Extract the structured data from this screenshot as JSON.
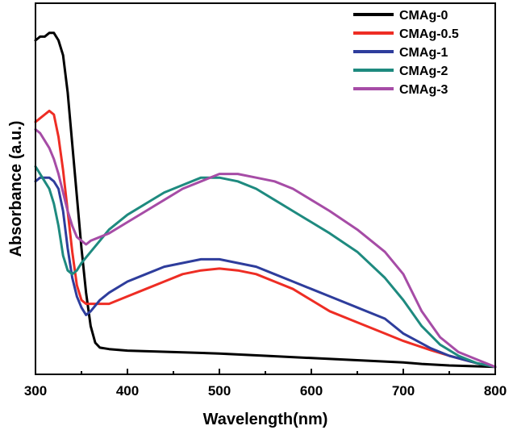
{
  "chart_data": {
    "type": "line",
    "title": "",
    "xlabel": "Wavelength(nm)",
    "ylabel": "Absorbance (a.u.)",
    "xlim": [
      300,
      800
    ],
    "ylim": [
      0,
      1
    ],
    "xticks": [
      "300",
      "400",
      "500",
      "600",
      "700",
      "800"
    ],
    "yticks_shown": false,
    "grid": false,
    "legend_position": "top-right",
    "series": [
      {
        "name": "CMAg-0",
        "color": "#000000",
        "points": [
          [
            300,
            0.9
          ],
          [
            305,
            0.91
          ],
          [
            310,
            0.91
          ],
          [
            315,
            0.92
          ],
          [
            320,
            0.92
          ],
          [
            325,
            0.9
          ],
          [
            330,
            0.86
          ],
          [
            335,
            0.76
          ],
          [
            340,
            0.62
          ],
          [
            345,
            0.48
          ],
          [
            350,
            0.34
          ],
          [
            355,
            0.22
          ],
          [
            360,
            0.13
          ],
          [
            365,
            0.085
          ],
          [
            370,
            0.072
          ],
          [
            380,
            0.068
          ],
          [
            400,
            0.064
          ],
          [
            450,
            0.06
          ],
          [
            500,
            0.056
          ],
          [
            550,
            0.05
          ],
          [
            600,
            0.044
          ],
          [
            650,
            0.038
          ],
          [
            700,
            0.032
          ],
          [
            720,
            0.028
          ],
          [
            750,
            0.024
          ],
          [
            800,
            0.02
          ]
        ]
      },
      {
        "name": "CMAg-0.5",
        "color": "#ee2d24",
        "points": [
          [
            300,
            0.68
          ],
          [
            305,
            0.69
          ],
          [
            310,
            0.7
          ],
          [
            315,
            0.71
          ],
          [
            320,
            0.7
          ],
          [
            325,
            0.64
          ],
          [
            330,
            0.55
          ],
          [
            335,
            0.44
          ],
          [
            340,
            0.33
          ],
          [
            345,
            0.24
          ],
          [
            350,
            0.2
          ],
          [
            355,
            0.19
          ],
          [
            360,
            0.19
          ],
          [
            370,
            0.19
          ],
          [
            380,
            0.19
          ],
          [
            400,
            0.21
          ],
          [
            420,
            0.23
          ],
          [
            440,
            0.25
          ],
          [
            460,
            0.27
          ],
          [
            480,
            0.28
          ],
          [
            500,
            0.285
          ],
          [
            520,
            0.28
          ],
          [
            540,
            0.27
          ],
          [
            560,
            0.25
          ],
          [
            580,
            0.23
          ],
          [
            600,
            0.2
          ],
          [
            620,
            0.17
          ],
          [
            650,
            0.14
          ],
          [
            680,
            0.11
          ],
          [
            700,
            0.09
          ],
          [
            730,
            0.065
          ],
          [
            750,
            0.05
          ],
          [
            780,
            0.03
          ],
          [
            800,
            0.02
          ]
        ]
      },
      {
        "name": "CMAg-1",
        "color": "#2e3d9c",
        "points": [
          [
            300,
            0.52
          ],
          [
            305,
            0.53
          ],
          [
            310,
            0.53
          ],
          [
            315,
            0.53
          ],
          [
            320,
            0.52
          ],
          [
            325,
            0.5
          ],
          [
            330,
            0.44
          ],
          [
            335,
            0.34
          ],
          [
            340,
            0.26
          ],
          [
            345,
            0.21
          ],
          [
            350,
            0.18
          ],
          [
            355,
            0.16
          ],
          [
            360,
            0.17
          ],
          [
            370,
            0.2
          ],
          [
            380,
            0.22
          ],
          [
            400,
            0.25
          ],
          [
            420,
            0.27
          ],
          [
            440,
            0.29
          ],
          [
            460,
            0.3
          ],
          [
            480,
            0.31
          ],
          [
            500,
            0.31
          ],
          [
            520,
            0.3
          ],
          [
            540,
            0.29
          ],
          [
            560,
            0.27
          ],
          [
            580,
            0.25
          ],
          [
            600,
            0.23
          ],
          [
            620,
            0.21
          ],
          [
            650,
            0.18
          ],
          [
            680,
            0.15
          ],
          [
            700,
            0.11
          ],
          [
            730,
            0.07
          ],
          [
            750,
            0.05
          ],
          [
            780,
            0.03
          ],
          [
            800,
            0.02
          ]
        ]
      },
      {
        "name": "CMAg-2",
        "color": "#1e8a7f",
        "points": [
          [
            300,
            0.56
          ],
          [
            305,
            0.54
          ],
          [
            310,
            0.52
          ],
          [
            315,
            0.5
          ],
          [
            320,
            0.46
          ],
          [
            325,
            0.4
          ],
          [
            330,
            0.32
          ],
          [
            335,
            0.28
          ],
          [
            340,
            0.27
          ],
          [
            345,
            0.28
          ],
          [
            350,
            0.3
          ],
          [
            360,
            0.33
          ],
          [
            370,
            0.36
          ],
          [
            380,
            0.39
          ],
          [
            400,
            0.43
          ],
          [
            420,
            0.46
          ],
          [
            440,
            0.49
          ],
          [
            460,
            0.51
          ],
          [
            480,
            0.53
          ],
          [
            500,
            0.53
          ],
          [
            520,
            0.52
          ],
          [
            540,
            0.5
          ],
          [
            560,
            0.47
          ],
          [
            580,
            0.44
          ],
          [
            600,
            0.41
          ],
          [
            620,
            0.38
          ],
          [
            650,
            0.33
          ],
          [
            680,
            0.26
          ],
          [
            700,
            0.2
          ],
          [
            720,
            0.13
          ],
          [
            740,
            0.08
          ],
          [
            760,
            0.05
          ],
          [
            780,
            0.03
          ],
          [
            800,
            0.02
          ]
        ]
      },
      {
        "name": "CMAg-3",
        "color": "#a64ca6",
        "points": [
          [
            300,
            0.66
          ],
          [
            305,
            0.65
          ],
          [
            310,
            0.63
          ],
          [
            315,
            0.61
          ],
          [
            320,
            0.58
          ],
          [
            325,
            0.54
          ],
          [
            330,
            0.49
          ],
          [
            335,
            0.44
          ],
          [
            340,
            0.4
          ],
          [
            345,
            0.37
          ],
          [
            350,
            0.36
          ],
          [
            355,
            0.35
          ],
          [
            360,
            0.36
          ],
          [
            370,
            0.37
          ],
          [
            380,
            0.38
          ],
          [
            400,
            0.41
          ],
          [
            420,
            0.44
          ],
          [
            440,
            0.47
          ],
          [
            460,
            0.5
          ],
          [
            480,
            0.52
          ],
          [
            500,
            0.54
          ],
          [
            520,
            0.54
          ],
          [
            540,
            0.53
          ],
          [
            560,
            0.52
          ],
          [
            580,
            0.5
          ],
          [
            600,
            0.47
          ],
          [
            620,
            0.44
          ],
          [
            650,
            0.39
          ],
          [
            680,
            0.33
          ],
          [
            700,
            0.27
          ],
          [
            720,
            0.17
          ],
          [
            740,
            0.1
          ],
          [
            760,
            0.06
          ],
          [
            780,
            0.04
          ],
          [
            800,
            0.02
          ]
        ]
      }
    ]
  }
}
